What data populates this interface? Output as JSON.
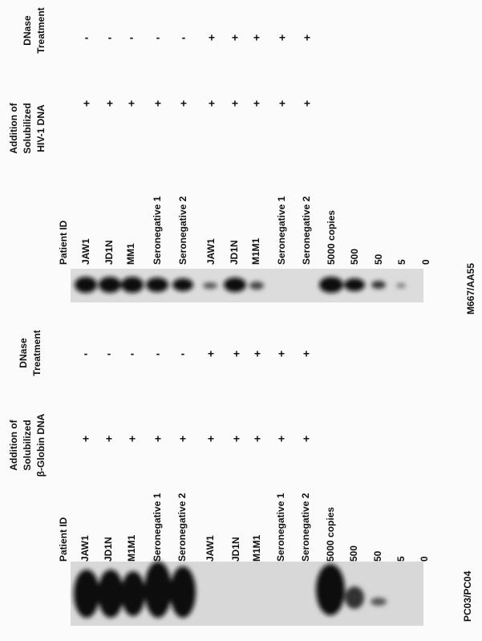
{
  "panels": [
    {
      "marker_rows": [
        {
          "label": [
            "DNase",
            "Treatment"
          ],
          "values": [
            "-",
            "-",
            "-",
            "-",
            "-",
            "+",
            "+",
            "+",
            "+",
            "+"
          ]
        },
        {
          "label": [
            "Addition of",
            "Solubilized",
            "HIV-1 DNA"
          ],
          "values": [
            "+",
            "+",
            "+",
            "+",
            "+",
            "+",
            "+",
            "+",
            "+",
            "+"
          ]
        }
      ],
      "patient_id_label": "Patient ID",
      "lanes": [
        "JAW1",
        "JD1N",
        "MM1",
        "Seronegative 1",
        "Seronegative 2",
        "JAW1",
        "JD1N",
        "M1M1",
        "Seronegative 1",
        "Seronegative 2",
        "5000 copies",
        "500",
        "50",
        "5",
        "0"
      ],
      "gel_label": "M667/AA55"
    },
    {
      "marker_rows": [
        {
          "label": [
            "DNase",
            "Treatment"
          ],
          "values": [
            "-",
            "-",
            "-",
            "-",
            "-",
            "+",
            "+",
            "+",
            "+",
            "+"
          ]
        },
        {
          "label": [
            "Addition of",
            "Solubilized",
            "β-Globin DNA"
          ],
          "values": [
            "+",
            "+",
            "+",
            "+",
            "+",
            "+",
            "+",
            "+",
            "+",
            "+"
          ]
        }
      ],
      "patient_id_label": "Patient ID",
      "lanes": [
        "JAW1",
        "JD1N",
        "M1M1",
        "Seronegative 1",
        "Seronegative 2",
        "JAW1",
        "JD1N",
        "M1M1",
        "Seronegative 1",
        "Seronegative 2",
        "5000 copies",
        "500",
        "50",
        "5",
        "0"
      ],
      "gel_label": "PC03/PC04"
    }
  ]
}
